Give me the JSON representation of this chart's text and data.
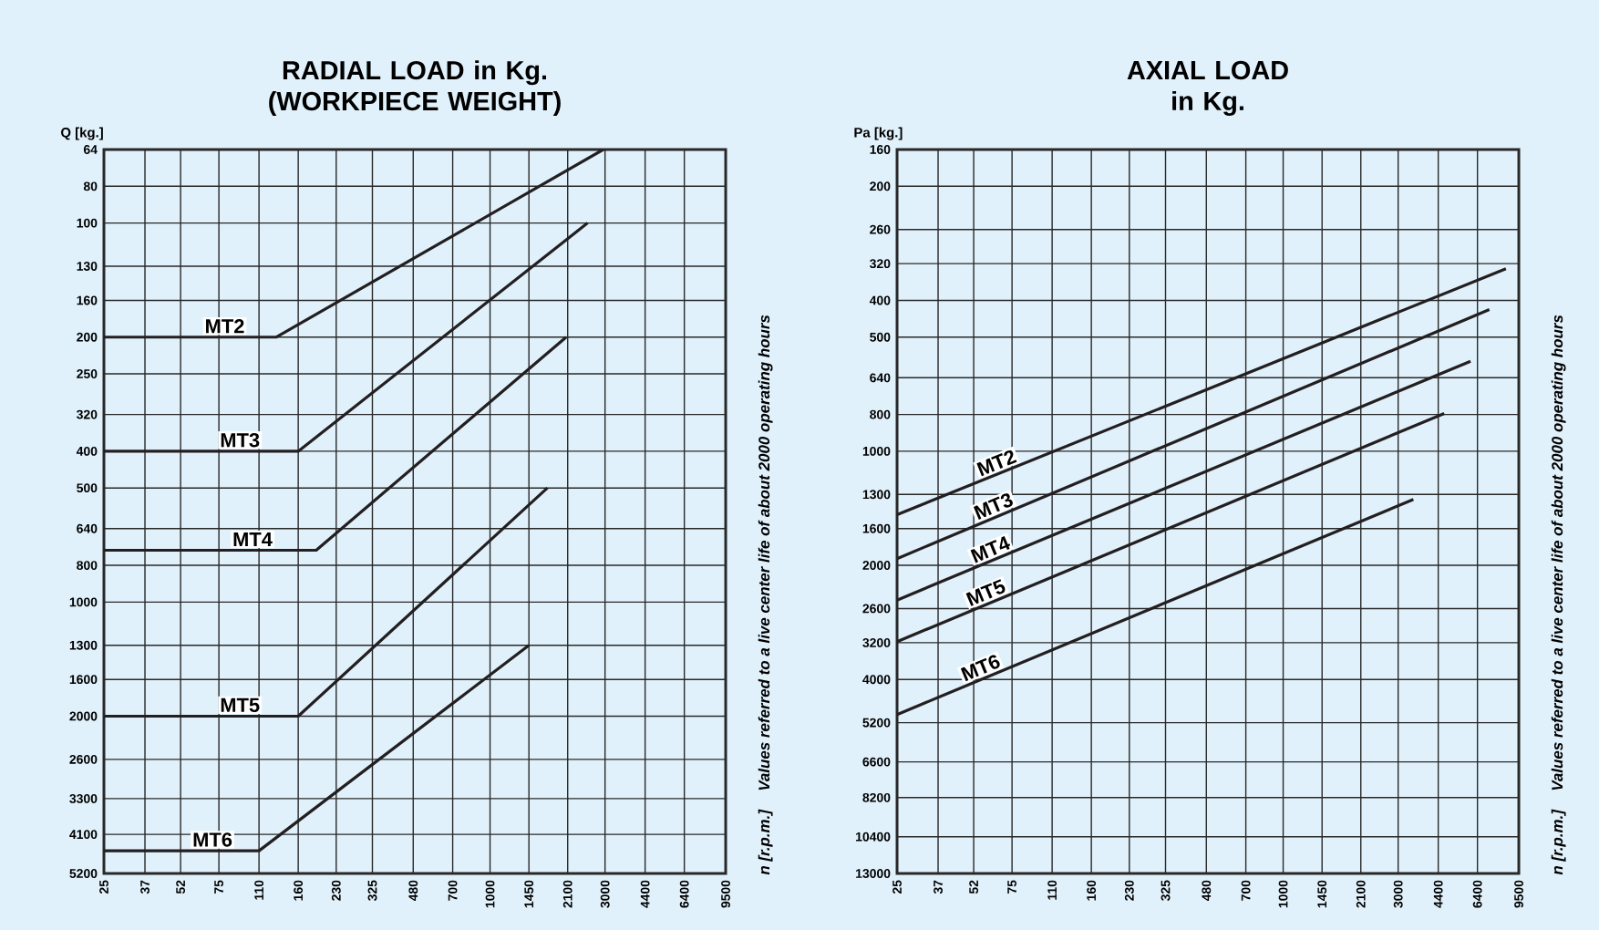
{
  "chart_data": [
    {
      "type": "line",
      "title": "RADIAL LOAD in Kg. (WORKPIECE WEIGHT)",
      "ylabel": "Q [kg.]",
      "annotations": [
        "n [r.p.m.]",
        "Values referred to a live center life of about 2000 operating hours"
      ],
      "log": "xy",
      "grid": true,
      "xlim": [
        25,
        9500
      ],
      "xticks": [
        25,
        37,
        52,
        75,
        110,
        160,
        230,
        325,
        480,
        700,
        1000,
        1450,
        2100,
        3000,
        4400,
        6400,
        9500
      ],
      "ylim": [
        5200,
        64
      ],
      "yticks": [
        64,
        80,
        100,
        130,
        160,
        200,
        250,
        320,
        400,
        500,
        640,
        800,
        1000,
        1300,
        1600,
        2000,
        2600,
        3300,
        4100,
        5200
      ],
      "series": [
        {
          "name": "MT2",
          "color": "#231f20",
          "x": [
            25,
            130,
            2950
          ],
          "values": [
            200,
            200,
            64
          ]
        },
        {
          "name": "MT3",
          "color": "#231f20",
          "x": [
            25,
            160,
            2540
          ],
          "values": [
            400,
            400,
            100
          ]
        },
        {
          "name": "MT4",
          "color": "#231f20",
          "x": [
            25,
            190,
            2070
          ],
          "values": [
            730,
            730,
            200
          ]
        },
        {
          "name": "MT5",
          "color": "#231f20",
          "x": [
            25,
            160,
            1730
          ],
          "values": [
            2000,
            2000,
            500
          ]
        },
        {
          "name": "MT6",
          "color": "#231f20",
          "x": [
            25,
            110,
            1450
          ],
          "values": [
            4530,
            4530,
            1300
          ]
        }
      ]
    },
    {
      "type": "line",
      "title": "AXIAL LOAD in Kg.",
      "ylabel": "Pa [kg.]",
      "annotations": [
        "n [r.p.m.]",
        "Values referred to a live center life of about 2000 operating hours"
      ],
      "log": "xy",
      "grid": true,
      "xlim": [
        25,
        9500
      ],
      "xticks": [
        25,
        37,
        52,
        75,
        110,
        160,
        230,
        325,
        480,
        700,
        1000,
        1450,
        2100,
        3000,
        4400,
        6400,
        9500
      ],
      "ylim": [
        13000,
        160
      ],
      "yticks": [
        160,
        200,
        260,
        320,
        400,
        500,
        640,
        800,
        1000,
        1300,
        1600,
        2000,
        2600,
        3200,
        4000,
        5200,
        6600,
        8200,
        10400,
        13000
      ],
      "series": [
        {
          "name": "MT2",
          "color": "#231f20",
          "x": [
            25,
            8400
          ],
          "values": [
            1470,
            330
          ]
        },
        {
          "name": "MT3",
          "color": "#231f20",
          "x": [
            25,
            7170
          ],
          "values": [
            1920,
            423
          ]
        },
        {
          "name": "MT4",
          "color": "#231f20",
          "x": [
            25,
            5990
          ],
          "values": [
            2470,
            579
          ]
        },
        {
          "name": "MT5",
          "color": "#231f20",
          "x": [
            25,
            4660
          ],
          "values": [
            3180,
            795
          ]
        },
        {
          "name": "MT6",
          "color": "#231f20",
          "x": [
            25,
            3470
          ],
          "values": [
            4950,
            1340
          ]
        }
      ]
    }
  ]
}
